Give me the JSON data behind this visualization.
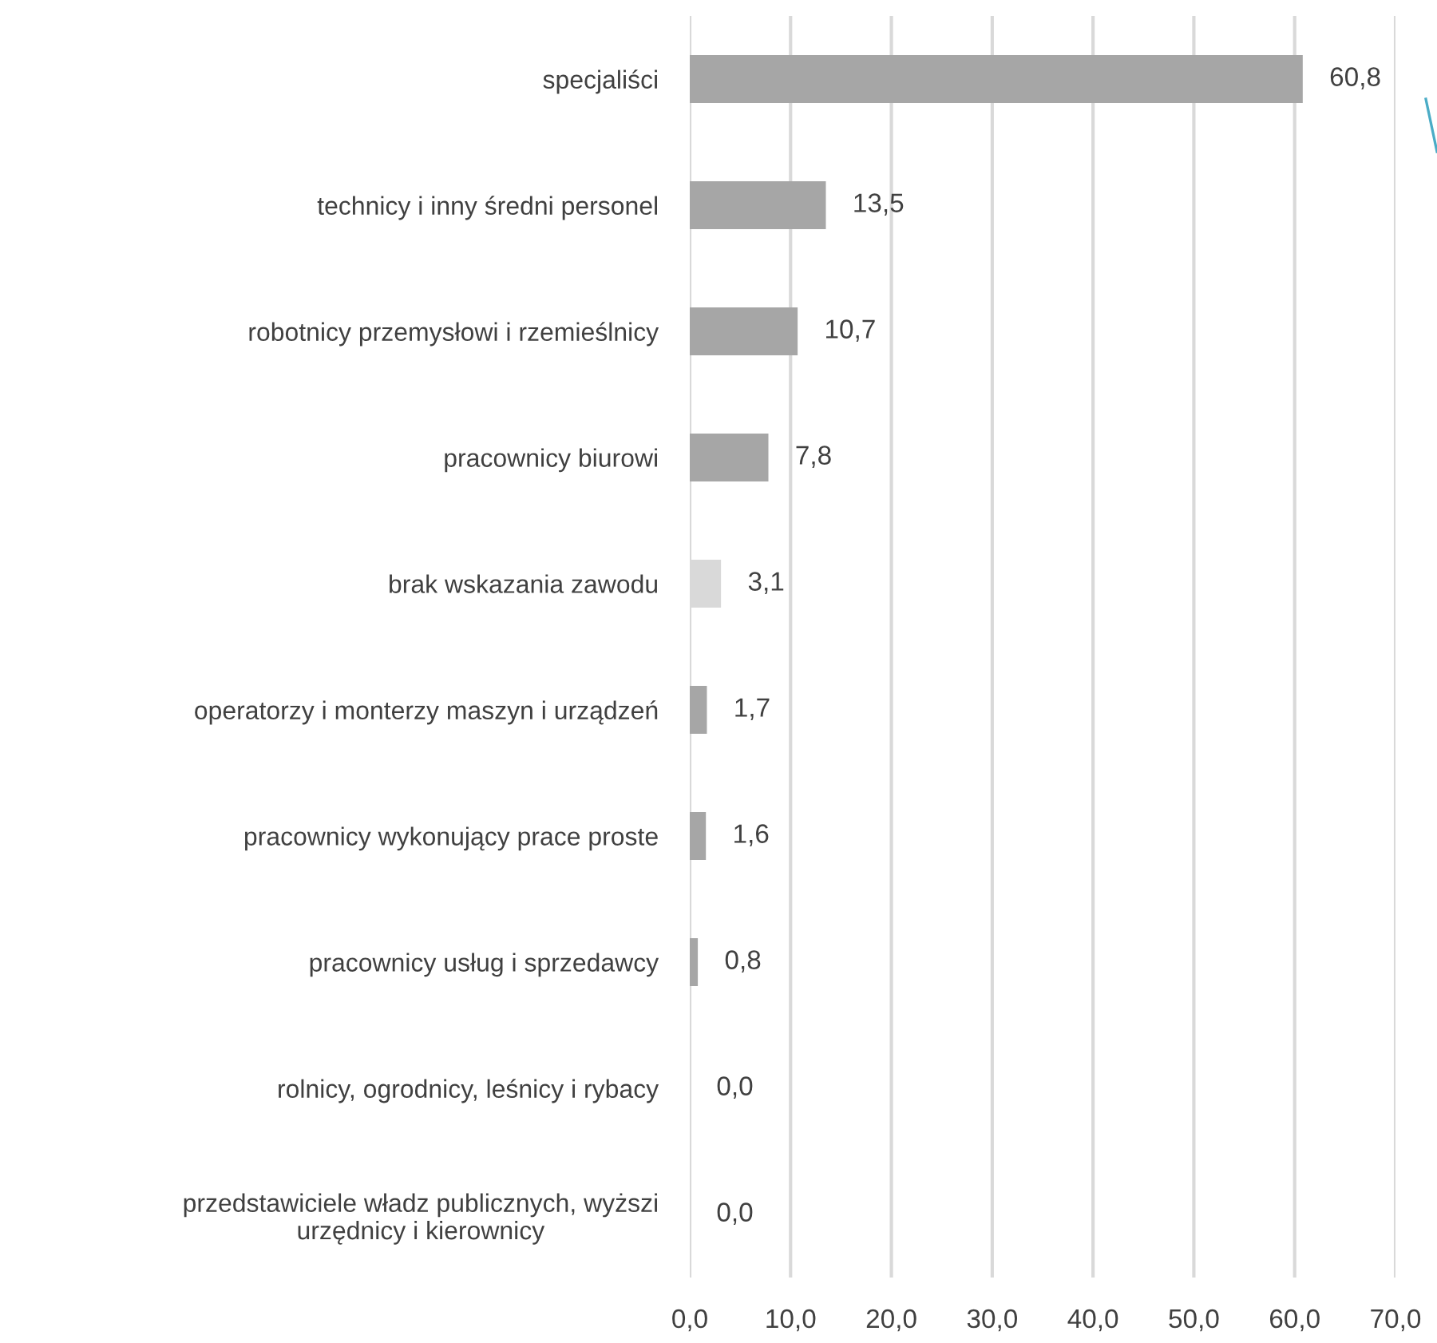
{
  "chart_data": {
    "type": "bar",
    "orientation": "horizontal",
    "categories": [
      "specjaliści",
      "technicy i inny średni personel",
      "robotnicy przemysłowi i rzemieślnicy",
      "pracownicy biurowi",
      "brak wskazania zawodu",
      "operatorzy i monterzy maszyn i urządzeń",
      "pracownicy wykonujący prace proste",
      "pracownicy usług i sprzedawcy",
      "rolnicy, ogrodnicy, leśnicy i rybacy",
      "przedstawiciele władz publicznych, wyższi\nurzędnicy i kierownicy"
    ],
    "values": [
      60.8,
      13.5,
      10.7,
      7.8,
      3.1,
      1.7,
      1.6,
      0.8,
      0.0,
      0.0
    ],
    "colors": [
      "#a6a6a6",
      "#a6a6a6",
      "#a6a6a6",
      "#a6a6a6",
      "#d9d9d9",
      "#a6a6a6",
      "#a6a6a6",
      "#a6a6a6",
      "#a6a6a6",
      "#a6a6a6"
    ],
    "value_labels": [
      "60,8",
      "13,5",
      "10,7",
      "7,8",
      "3,1",
      "1,7",
      "1,6",
      "0,8",
      "0,0",
      "0,0"
    ],
    "xlim": [
      0,
      70
    ],
    "xticks": [
      {
        "value": 0,
        "label": "0,0"
      },
      {
        "value": 10,
        "label": "10,0"
      },
      {
        "value": 20,
        "label": "20,0"
      },
      {
        "value": 30,
        "label": "30,0"
      },
      {
        "value": 40,
        "label": "40,0"
      },
      {
        "value": 50,
        "label": "50,0"
      },
      {
        "value": 60,
        "label": "60,0"
      },
      {
        "value": 70,
        "label": "70,0"
      }
    ],
    "grid": "x",
    "legend": false
  }
}
